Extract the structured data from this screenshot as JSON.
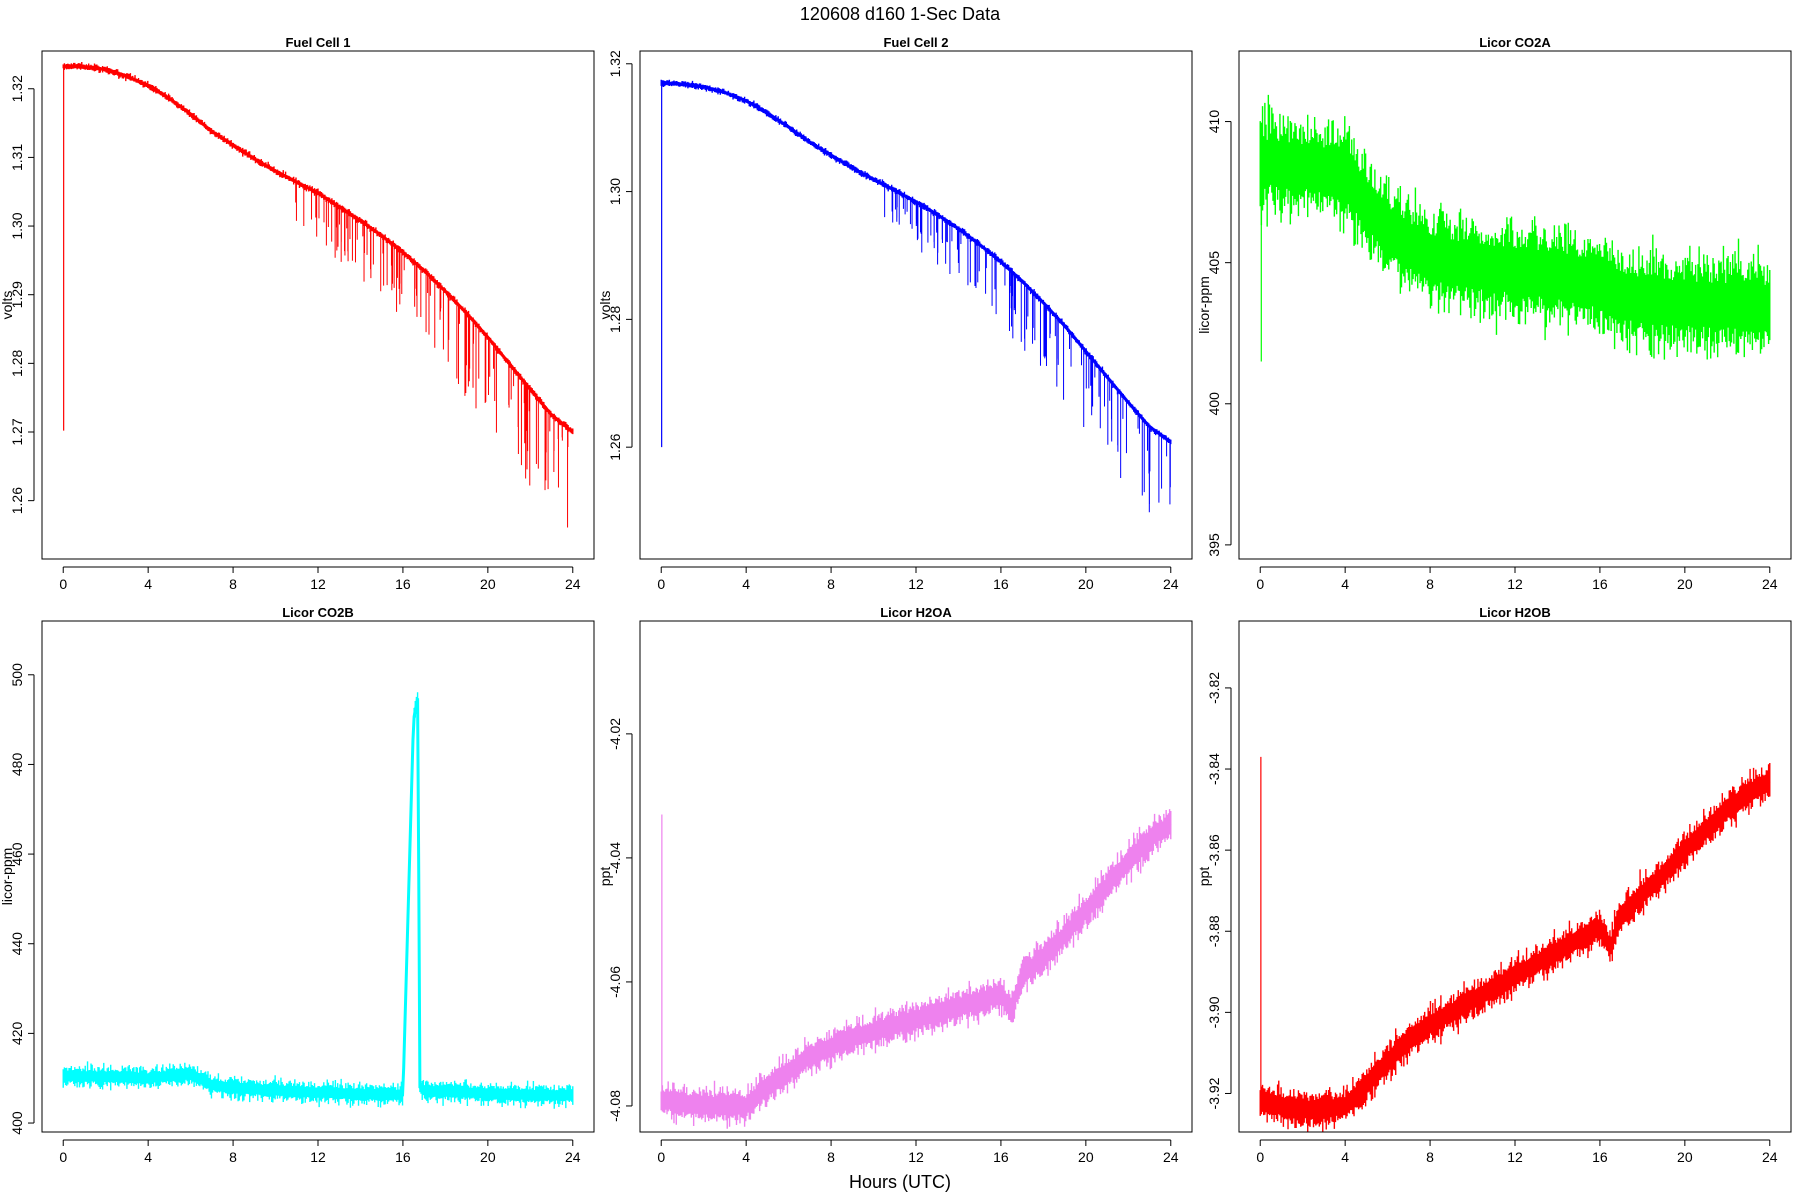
{
  "figure": {
    "title": "120608   d160   1-Sec Data",
    "xlabel": "Hours (UTC)"
  },
  "chart_data": [
    {
      "type": "line",
      "title": "Fuel Cell 1",
      "ylabel": "volts",
      "color": "#ff0000",
      "xlim": [
        -1,
        25
      ],
      "ylim": [
        1.2515,
        1.3255
      ],
      "xticks": [
        0,
        4,
        8,
        12,
        16,
        20,
        24
      ],
      "yticks": [
        "1.26",
        "1.27",
        "1.28",
        "1.29",
        "1.30",
        "1.31",
        "1.32"
      ],
      "x": [
        0,
        1,
        2,
        3,
        4,
        5,
        6,
        7,
        8,
        9,
        10,
        11,
        12,
        13,
        14,
        15,
        16,
        17,
        18,
        19,
        20,
        21,
        22,
        23,
        24
      ],
      "y": [
        1.3233,
        1.3232,
        1.3228,
        1.3218,
        1.3205,
        1.3186,
        1.3163,
        1.3138,
        1.3118,
        1.3098,
        1.308,
        1.3064,
        1.3048,
        1.3028,
        1.3008,
        1.2986,
        1.2962,
        1.2935,
        1.2905,
        1.2873,
        1.2838,
        1.28,
        1.2762,
        1.2725,
        1.27
      ],
      "noise": 0.0004,
      "spikes": {
        "start": 10.5,
        "count": 120,
        "min_drop": 0.002,
        "max_drop": 0.016
      },
      "artifacts": [
        {
          "x": 0.02,
          "y0": 1.3233,
          "y1": 1.2702
        }
      ]
    },
    {
      "type": "line",
      "title": "Fuel Cell 2",
      "ylabel": "volts",
      "color": "#0000ff",
      "xlim": [
        -1,
        25
      ],
      "ylim": [
        1.2425,
        1.322
      ],
      "xticks": [
        0,
        4,
        8,
        12,
        16,
        20,
        24
      ],
      "yticks": [
        "1.26",
        "1.28",
        "1.30",
        "1.32"
      ],
      "x": [
        0,
        1,
        2,
        3,
        4,
        5,
        6,
        7,
        8,
        9,
        10,
        11,
        12,
        13,
        14,
        15,
        16,
        17,
        18,
        19,
        20,
        21,
        22,
        23,
        24
      ],
      "y": [
        1.317,
        1.3168,
        1.3164,
        1.3155,
        1.3142,
        1.3123,
        1.3101,
        1.3077,
        1.3057,
        1.3037,
        1.3019,
        1.3002,
        1.2984,
        1.2964,
        1.2942,
        1.2917,
        1.289,
        1.286,
        1.2826,
        1.279,
        1.275,
        1.271,
        1.267,
        1.2632,
        1.2608
      ],
      "noise": 0.0004,
      "spikes": {
        "start": 10.5,
        "count": 120,
        "min_drop": 0.002,
        "max_drop": 0.016
      },
      "artifacts": [
        {
          "x": 0.02,
          "y0": 1.317,
          "y1": 1.26
        }
      ]
    },
    {
      "type": "line",
      "title": "Licor CO2A",
      "ylabel": "licor-ppm",
      "color": "#00ff00",
      "xlim": [
        -1,
        25
      ],
      "ylim": [
        394.5,
        412.5
      ],
      "xticks": [
        0,
        4,
        8,
        12,
        16,
        20,
        24
      ],
      "yticks": [
        "395",
        "400",
        "405",
        "410"
      ],
      "x": [
        0,
        1,
        2,
        3,
        4,
        5,
        6,
        7,
        8,
        9,
        10,
        11,
        12,
        13,
        14,
        15,
        16,
        17,
        18,
        19,
        20,
        21,
        22,
        23,
        24
      ],
      "y": [
        408.6,
        408.5,
        408.4,
        408.3,
        408.2,
        407.0,
        406.2,
        405.6,
        405.2,
        405.0,
        404.9,
        404.8,
        404.7,
        404.6,
        404.5,
        404.4,
        404.2,
        403.8,
        403.7,
        403.6,
        403.6,
        403.5,
        403.5,
        403.4,
        403.4
      ],
      "noise": 1.3,
      "artifacts": [
        {
          "x": 0.05,
          "y0": 408.6,
          "y1": 401.5
        }
      ]
    },
    {
      "type": "line",
      "title": "Licor CO2B",
      "ylabel": "licor-ppm",
      "color": "#00ffff",
      "xlim": [
        -1,
        25
      ],
      "ylim": [
        398,
        512
      ],
      "xticks": [
        0,
        4,
        8,
        12,
        16,
        20,
        24
      ],
      "yticks": [
        "400",
        "420",
        "440",
        "460",
        "480",
        "500"
      ],
      "x": [
        0,
        1,
        2,
        3,
        4,
        5,
        6,
        7,
        8,
        9,
        10,
        11,
        12,
        13,
        14,
        15,
        16,
        16.5,
        16.7,
        16.8,
        17,
        18,
        19,
        20,
        21,
        22,
        23,
        24
      ],
      "y": [
        410.5,
        410.4,
        410.3,
        410.2,
        410.0,
        410.5,
        411.0,
        408.5,
        407.8,
        407.5,
        407.3,
        407.0,
        406.8,
        406.6,
        406.5,
        406.4,
        406.3,
        490.0,
        495.0,
        408.0,
        407.2,
        407.0,
        406.8,
        406.6,
        406.4,
        406.3,
        406.2,
        406.2
      ],
      "noise": 1.8,
      "artifacts": []
    },
    {
      "type": "line",
      "title": "Licor H2OA",
      "ylabel": "ppt",
      "color": "#ee82ee",
      "xlim": [
        -1,
        25
      ],
      "ylim": [
        -4.0842,
        -4.0018
      ],
      "xticks": [
        0,
        4,
        8,
        12,
        16,
        20,
        24
      ],
      "yticks": [
        "-4.08",
        "-4.06",
        "-4.04",
        "-4.02"
      ],
      "x": [
        0,
        1,
        2,
        3,
        4,
        5,
        6,
        7,
        8,
        9,
        10,
        11,
        12,
        13,
        14,
        15,
        16,
        16.5,
        17,
        18,
        19,
        20,
        21,
        22,
        23,
        24
      ],
      "y": [
        -4.079,
        -4.0795,
        -4.08,
        -4.08,
        -4.08,
        -4.077,
        -4.0745,
        -4.072,
        -4.0705,
        -4.069,
        -4.068,
        -4.067,
        -4.066,
        -4.065,
        -4.064,
        -4.063,
        -4.062,
        -4.0645,
        -4.059,
        -4.056,
        -4.0525,
        -4.0485,
        -4.0445,
        -4.0405,
        -4.037,
        -4.0345
      ],
      "noise": 0.0022,
      "artifacts": [
        {
          "x": 0.03,
          "y0": -4.079,
          "y1": -4.033
        }
      ]
    },
    {
      "type": "line",
      "title": "Licor H2OB",
      "ylabel": "ppt",
      "color": "#ff0000",
      "xlim": [
        -1,
        25
      ],
      "ylim": [
        -3.9295,
        -3.8035
      ],
      "xticks": [
        0,
        4,
        8,
        12,
        16,
        20,
        24
      ],
      "yticks": [
        "-3.92",
        "-3.90",
        "-3.88",
        "-3.86",
        "-3.84",
        "-3.82"
      ],
      "x": [
        0,
        1,
        2,
        3,
        4,
        5,
        6,
        7,
        8,
        9,
        10,
        11,
        12,
        13,
        14,
        15,
        16,
        16.5,
        17,
        18,
        19,
        20,
        21,
        22,
        23,
        24
      ],
      "y": [
        -3.922,
        -3.923,
        -3.924,
        -3.924,
        -3.923,
        -3.918,
        -3.912,
        -3.907,
        -3.903,
        -3.9,
        -3.897,
        -3.894,
        -3.891,
        -3.888,
        -3.885,
        -3.882,
        -3.879,
        -3.884,
        -3.876,
        -3.871,
        -3.866,
        -3.86,
        -3.855,
        -3.85,
        -3.846,
        -3.843
      ],
      "noise": 0.0035,
      "artifacts": [
        {
          "x": 0.03,
          "y0": -3.922,
          "y1": -3.837
        }
      ]
    }
  ]
}
